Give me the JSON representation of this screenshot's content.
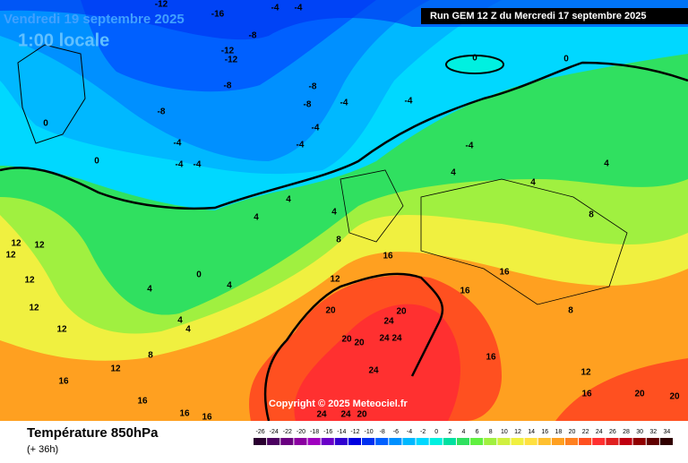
{
  "header": {
    "date": "Vendredi 19 septembre 2025",
    "time": "1:00 locale",
    "run": "Run GEM 12 Z du Mercredi 17 septembre 2025"
  },
  "copyright": "Copyright © 2025 Meteociel.fr",
  "footer": {
    "title": "Température 850hPa",
    "lead": "(+ 36h)"
  },
  "scale": {
    "values": [
      -26,
      -24,
      -22,
      -20,
      -18,
      -16,
      -14,
      -12,
      -10,
      -8,
      -6,
      -4,
      -2,
      0,
      2,
      4,
      6,
      8,
      10,
      12,
      14,
      16,
      18,
      20,
      22,
      24,
      26,
      28,
      30,
      32,
      34
    ],
    "colors": [
      "#2a0030",
      "#4b0060",
      "#6a0080",
      "#8a00a0",
      "#a000c0",
      "#6a00c8",
      "#3000d0",
      "#0000e0",
      "#0030f0",
      "#0060ff",
      "#0090ff",
      "#00b8ff",
      "#00d8ff",
      "#00f0e0",
      "#00e0a0",
      "#30e060",
      "#60f040",
      "#a0f040",
      "#d0f040",
      "#f0f040",
      "#ffe040",
      "#ffc030",
      "#ffa020",
      "#ff8020",
      "#ff5020",
      "#ff3030",
      "#e02020",
      "#c00010",
      "#900000",
      "#600000",
      "#300000"
    ]
  },
  "contour_labels": [
    -12,
    -16,
    -4,
    -4,
    -8,
    -12,
    -12,
    -8,
    -8,
    -8,
    -4,
    -4,
    -8,
    -4,
    -4,
    -4,
    -4,
    -4,
    0,
    0,
    0,
    0,
    -4,
    4,
    4,
    4,
    4,
    4,
    4,
    8,
    8,
    12,
    12,
    12,
    12,
    12,
    12,
    0,
    4,
    4,
    4,
    4,
    8,
    12,
    12,
    16,
    16,
    16,
    16,
    16,
    16,
    16,
    16,
    20,
    20,
    20,
    20,
    24,
    24,
    24,
    24,
    20,
    20,
    24,
    24,
    20,
    16,
    12,
    8
  ]
}
